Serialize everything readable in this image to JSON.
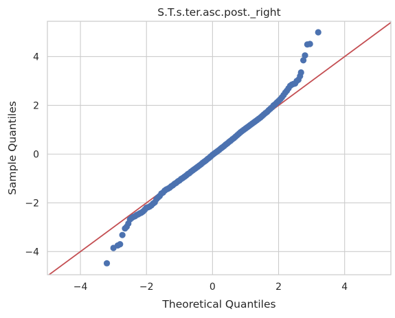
{
  "chart_data": {
    "type": "scatter",
    "title": "S.T.s.ter.asc.post._right",
    "xlabel": "Theoretical Quantiles",
    "ylabel": "Sample Quantiles",
    "xlim": [
      -5,
      5.4
    ],
    "ylim": [
      -4.95,
      5.45
    ],
    "xticks": [
      -4,
      -2,
      0,
      2,
      4
    ],
    "yticks": [
      -4,
      -2,
      0,
      2,
      4
    ],
    "xtick_labels": [
      "−4",
      "−2",
      "0",
      "2",
      "4"
    ],
    "ytick_labels": [
      "−4",
      "−2",
      "0",
      "2",
      "4"
    ],
    "grid": true,
    "reference_line": {
      "slope": 1,
      "intercept": 0,
      "color": "#c44e52"
    },
    "series": [
      {
        "color": "#4c72b0",
        "points": [
          [
            -3.2,
            -4.48
          ],
          [
            -3.0,
            -3.85
          ],
          [
            -2.87,
            -3.75
          ],
          [
            -2.8,
            -3.7
          ],
          [
            -2.73,
            -3.32
          ],
          [
            -2.65,
            -3.05
          ],
          [
            -2.6,
            -2.98
          ],
          [
            -2.55,
            -2.85
          ],
          [
            -2.5,
            -2.68
          ],
          [
            -2.45,
            -2.62
          ],
          [
            -2.4,
            -2.58
          ],
          [
            -2.35,
            -2.55
          ],
          [
            -2.3,
            -2.5
          ],
          [
            -2.25,
            -2.47
          ],
          [
            -2.2,
            -2.43
          ],
          [
            -2.15,
            -2.4
          ],
          [
            -2.1,
            -2.35
          ],
          [
            -2.05,
            -2.28
          ],
          [
            -2.0,
            -2.2
          ],
          [
            -1.95,
            -2.18
          ],
          [
            -1.9,
            -2.15
          ],
          [
            -1.85,
            -2.1
          ],
          [
            -1.8,
            -2.03
          ],
          [
            -1.75,
            -1.98
          ],
          [
            -1.7,
            -1.85
          ],
          [
            -1.65,
            -1.78
          ],
          [
            -1.6,
            -1.72
          ],
          [
            -1.55,
            -1.62
          ],
          [
            -1.5,
            -1.58
          ],
          [
            -1.45,
            -1.5
          ],
          [
            -1.4,
            -1.45
          ],
          [
            -1.35,
            -1.42
          ],
          [
            -1.3,
            -1.38
          ],
          [
            -1.25,
            -1.32
          ],
          [
            -1.2,
            -1.28
          ],
          [
            -1.15,
            -1.22
          ],
          [
            -1.1,
            -1.18
          ],
          [
            -1.05,
            -1.12
          ],
          [
            -1.0,
            -1.08
          ],
          [
            -0.95,
            -1.02
          ],
          [
            -0.9,
            -0.98
          ],
          [
            -0.85,
            -0.93
          ],
          [
            -0.8,
            -0.88
          ],
          [
            -0.75,
            -0.82
          ],
          [
            -0.7,
            -0.78
          ],
          [
            -0.65,
            -0.72
          ],
          [
            -0.6,
            -0.67
          ],
          [
            -0.55,
            -0.62
          ],
          [
            -0.5,
            -0.57
          ],
          [
            -0.45,
            -0.52
          ],
          [
            -0.4,
            -0.47
          ],
          [
            -0.35,
            -0.42
          ],
          [
            -0.3,
            -0.36
          ],
          [
            -0.25,
            -0.31
          ],
          [
            -0.2,
            -0.26
          ],
          [
            -0.15,
            -0.2
          ],
          [
            -0.1,
            -0.15
          ],
          [
            -0.05,
            -0.09
          ],
          [
            0.0,
            -0.03
          ],
          [
            0.05,
            0.02
          ],
          [
            0.1,
            0.07
          ],
          [
            0.15,
            0.12
          ],
          [
            0.2,
            0.17
          ],
          [
            0.25,
            0.23
          ],
          [
            0.3,
            0.28
          ],
          [
            0.35,
            0.33
          ],
          [
            0.4,
            0.39
          ],
          [
            0.45,
            0.44
          ],
          [
            0.5,
            0.5
          ],
          [
            0.55,
            0.55
          ],
          [
            0.6,
            0.61
          ],
          [
            0.65,
            0.66
          ],
          [
            0.7,
            0.72
          ],
          [
            0.75,
            0.78
          ],
          [
            0.8,
            0.84
          ],
          [
            0.85,
            0.9
          ],
          [
            0.9,
            0.95
          ],
          [
            0.95,
            1.0
          ],
          [
            1.0,
            1.05
          ],
          [
            1.05,
            1.1
          ],
          [
            1.1,
            1.15
          ],
          [
            1.15,
            1.2
          ],
          [
            1.2,
            1.25
          ],
          [
            1.25,
            1.3
          ],
          [
            1.3,
            1.35
          ],
          [
            1.35,
            1.4
          ],
          [
            1.4,
            1.45
          ],
          [
            1.45,
            1.5
          ],
          [
            1.5,
            1.56
          ],
          [
            1.55,
            1.62
          ],
          [
            1.6,
            1.68
          ],
          [
            1.65,
            1.73
          ],
          [
            1.7,
            1.8
          ],
          [
            1.75,
            1.86
          ],
          [
            1.8,
            1.92
          ],
          [
            1.85,
            2.0
          ],
          [
            1.9,
            2.05
          ],
          [
            1.95,
            2.12
          ],
          [
            2.0,
            2.18
          ],
          [
            2.05,
            2.25
          ],
          [
            2.1,
            2.33
          ],
          [
            2.15,
            2.42
          ],
          [
            2.2,
            2.52
          ],
          [
            2.25,
            2.6
          ],
          [
            2.3,
            2.7
          ],
          [
            2.35,
            2.8
          ],
          [
            2.4,
            2.85
          ],
          [
            2.45,
            2.88
          ],
          [
            2.5,
            2.9
          ],
          [
            2.55,
            3.0
          ],
          [
            2.6,
            3.05
          ],
          [
            2.65,
            3.2
          ],
          [
            2.68,
            3.35
          ],
          [
            2.75,
            3.85
          ],
          [
            2.8,
            4.05
          ],
          [
            2.87,
            4.5
          ],
          [
            2.95,
            4.52
          ],
          [
            3.2,
            5.0
          ]
        ]
      }
    ]
  }
}
